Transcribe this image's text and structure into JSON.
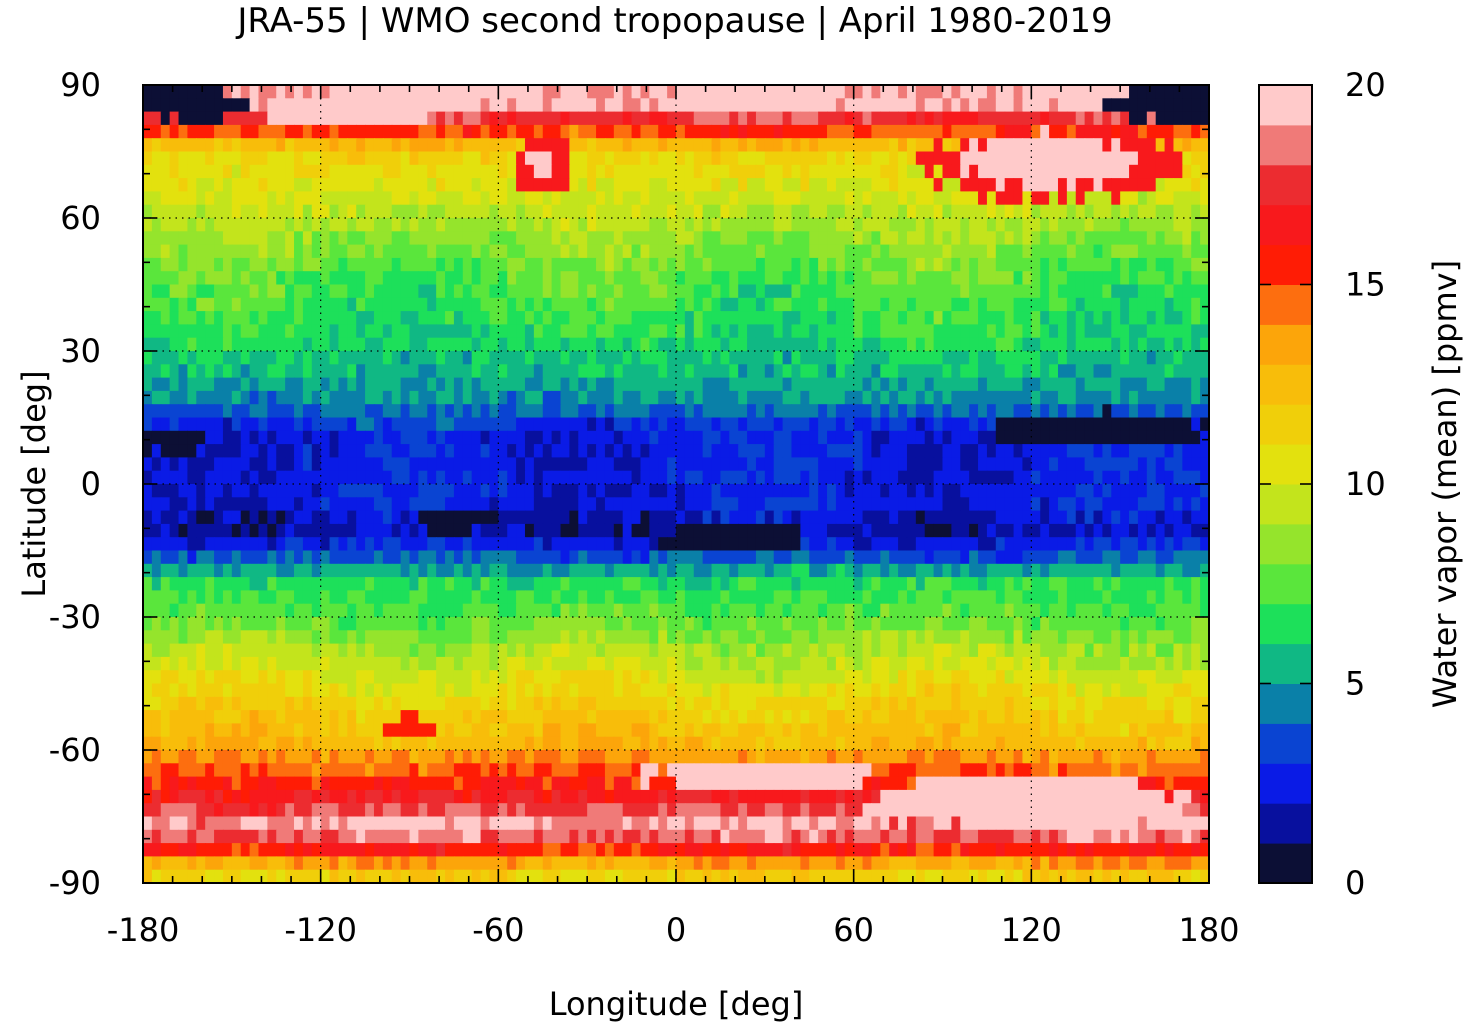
{
  "chart_data": {
    "type": "heatmap",
    "title": "JRA-55 | WMO second tropopause | April 1980-2019",
    "xlabel": "Longitude [deg]",
    "ylabel": "Latitude [deg]",
    "colorbar_label": "Water vapor (mean) [ppmv]",
    "xlim": [
      -180,
      180
    ],
    "ylim": [
      -90,
      90
    ],
    "xticks": [
      -180,
      -120,
      -60,
      0,
      60,
      120,
      180
    ],
    "yticks": [
      90,
      60,
      30,
      0,
      -30,
      -60,
      -90
    ],
    "grid": true,
    "colorbar": {
      "range": [
        0,
        20
      ],
      "ticks": [
        0,
        5,
        10,
        15,
        20
      ],
      "levels": [
        {
          "from": 0,
          "to": 1,
          "color": "#0c0f35"
        },
        {
          "from": 1,
          "to": 2,
          "color": "#08109e"
        },
        {
          "from": 2,
          "to": 3,
          "color": "#0a1be6"
        },
        {
          "from": 3,
          "to": 4,
          "color": "#0a44d2"
        },
        {
          "from": 4,
          "to": 5,
          "color": "#0a80a8"
        },
        {
          "from": 5,
          "to": 6,
          "color": "#10b884"
        },
        {
          "from": 6,
          "to": 7,
          "color": "#1de05a"
        },
        {
          "from": 7,
          "to": 8,
          "color": "#5ae63c"
        },
        {
          "from": 8,
          "to": 9,
          "color": "#95e42c"
        },
        {
          "from": 9,
          "to": 10,
          "color": "#c3e41c"
        },
        {
          "from": 10,
          "to": 11,
          "color": "#e3e10e"
        },
        {
          "from": 11,
          "to": 12,
          "color": "#f0cf0a"
        },
        {
          "from": 12,
          "to": 13,
          "color": "#f8bd0a"
        },
        {
          "from": 13,
          "to": 14,
          "color": "#fca50a"
        },
        {
          "from": 14,
          "to": 15,
          "color": "#fd6e0f"
        },
        {
          "from": 15,
          "to": 16,
          "color": "#ff1c05"
        },
        {
          "from": 16,
          "to": 17,
          "color": "#f8191c"
        },
        {
          "from": 17,
          "to": 18,
          "color": "#ec2c30"
        },
        {
          "from": 18,
          "to": 19,
          "color": "#f07a78"
        },
        {
          "from": 19,
          "to": 20,
          "color": "#ffcaca"
        }
      ]
    },
    "latitude_profile": [
      {
        "lat": 85,
        "value": 19.5
      },
      {
        "lat": 75,
        "value": 11.5
      },
      {
        "lat": 62,
        "value": 9.5
      },
      {
        "lat": 48,
        "value": 7.5
      },
      {
        "lat": 35,
        "value": 6.5
      },
      {
        "lat": 25,
        "value": 5.5
      },
      {
        "lat": 18,
        "value": 4.5
      },
      {
        "lat": 12,
        "value": 2.5
      },
      {
        "lat": 5,
        "value": 2.5
      },
      {
        "lat": 0,
        "value": 2.5
      },
      {
        "lat": -5,
        "value": 2.5
      },
      {
        "lat": -10,
        "value": 1.5
      },
      {
        "lat": -16,
        "value": 3.5
      },
      {
        "lat": -22,
        "value": 6.5
      },
      {
        "lat": -30,
        "value": 7.5
      },
      {
        "lat": -40,
        "value": 9.5
      },
      {
        "lat": -50,
        "value": 11.5
      },
      {
        "lat": -58,
        "value": 12.5
      },
      {
        "lat": -64,
        "value": 14.5
      },
      {
        "lat": -70,
        "value": 16.5
      },
      {
        "lat": -78,
        "value": 19.5
      },
      {
        "lat": -88,
        "value": 11.5
      }
    ],
    "features": [
      {
        "type": "blob",
        "lon": -45,
        "lat": 72,
        "rlon": 10,
        "rlat": 6,
        "value": 16.5
      },
      {
        "type": "blob",
        "lon": -45,
        "lat": 72,
        "rlon": 5,
        "rlat": 3,
        "value": 19.5
      },
      {
        "type": "blob",
        "lon": -110,
        "lat": 84,
        "rlon": 30,
        "rlat": 3,
        "value": 19.5
      },
      {
        "type": "blob",
        "lon": 130,
        "lat": 72,
        "rlon": 45,
        "rlat": 8,
        "value": 16.5
      },
      {
        "type": "blob",
        "lon": 125,
        "lat": 73,
        "rlon": 30,
        "rlat": 6,
        "value": 19.5
      },
      {
        "type": "blob",
        "lon": 175,
        "lat": 86,
        "rlon": 30,
        "rlat": 5,
        "value": 0.5
      },
      {
        "type": "blob",
        "lon": -165,
        "lat": 86,
        "rlon": 20,
        "rlat": 4,
        "value": 0.5
      },
      {
        "type": "blob",
        "lon": 140,
        "lat": 12,
        "rlon": 40,
        "rlat": 4,
        "value": 0.5
      },
      {
        "type": "blob",
        "lon": 20,
        "lat": -12,
        "rlon": 25,
        "rlat": 3,
        "value": 0.5
      },
      {
        "type": "blob",
        "lon": -75,
        "lat": -8,
        "rlon": 15,
        "rlat": 3,
        "value": 0.5
      },
      {
        "type": "blob",
        "lon": -170,
        "lat": 10,
        "rlon": 12,
        "rlat": 3,
        "value": 0.5
      },
      {
        "type": "blob",
        "lon": 30,
        "lat": -66,
        "rlon": 40,
        "rlat": 4,
        "value": 19.5
      },
      {
        "type": "blob",
        "lon": 120,
        "lat": -72,
        "rlon": 55,
        "rlat": 6,
        "value": 19.5
      },
      {
        "type": "blob",
        "lon": -90,
        "lat": -55,
        "rlon": 8,
        "rlat": 3,
        "value": 15.5
      }
    ]
  }
}
